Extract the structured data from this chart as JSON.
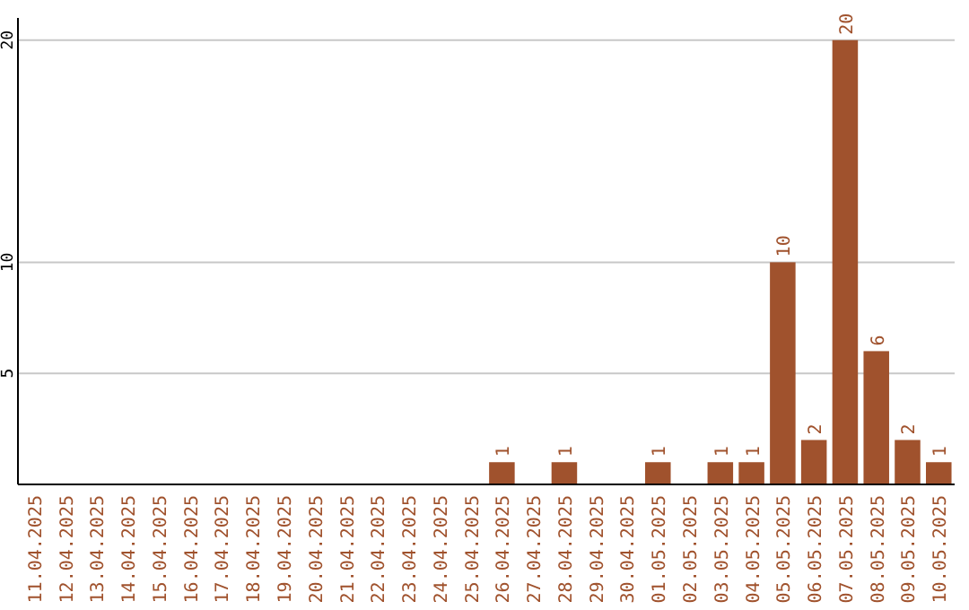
{
  "chart_data": {
    "type": "bar",
    "categories": [
      "11.04.2025",
      "12.04.2025",
      "13.04.2025",
      "14.04.2025",
      "15.04.2025",
      "16.04.2025",
      "17.04.2025",
      "18.04.2025",
      "19.04.2025",
      "20.04.2025",
      "21.04.2025",
      "22.04.2025",
      "23.04.2025",
      "24.04.2025",
      "25.04.2025",
      "26.04.2025",
      "27.04.2025",
      "28.04.2025",
      "29.04.2025",
      "30.04.2025",
      "01.05.2025",
      "02.05.2025",
      "03.05.2025",
      "04.05.2025",
      "05.05.2025",
      "06.05.2025",
      "07.05.2025",
      "08.05.2025",
      "09.05.2025",
      "10.05.2025"
    ],
    "values": [
      0,
      0,
      0,
      0,
      0,
      0,
      0,
      0,
      0,
      0,
      0,
      0,
      0,
      0,
      0,
      1,
      0,
      1,
      0,
      0,
      1,
      0,
      1,
      1,
      10,
      2,
      20,
      6,
      2,
      1
    ],
    "value_labels": [
      null,
      null,
      null,
      null,
      null,
      null,
      null,
      null,
      null,
      null,
      null,
      null,
      null,
      null,
      null,
      "1",
      null,
      "1",
      null,
      null,
      "1",
      null,
      "1",
      "1",
      "10",
      "2",
      "20",
      "6",
      "2",
      "1"
    ],
    "color": "#a0522d",
    "ylim": [
      0,
      21
    ],
    "yticks": [
      5,
      10,
      20
    ],
    "grid": "y"
  }
}
